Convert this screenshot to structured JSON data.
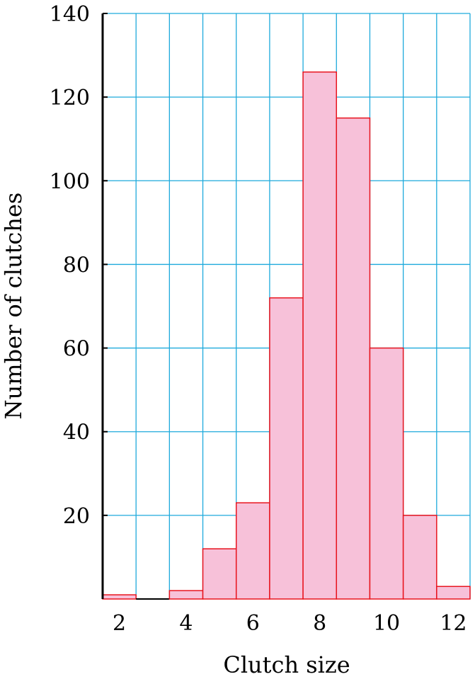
{
  "chart_data": {
    "type": "bar",
    "title": "",
    "xlabel": "Clutch size",
    "ylabel": "Number of clutches",
    "categories": [
      2,
      3,
      4,
      5,
      6,
      7,
      8,
      9,
      10,
      11,
      12
    ],
    "values": [
      1,
      0,
      2,
      12,
      23,
      72,
      126,
      115,
      60,
      20,
      3
    ],
    "xlim": [
      1.5,
      12.5
    ],
    "ylim": [
      0,
      140
    ],
    "x_ticks": [
      2,
      4,
      6,
      8,
      10,
      12
    ],
    "y_ticks": [
      20,
      40,
      60,
      80,
      100,
      120,
      140
    ],
    "grid": true,
    "colors": {
      "grid": "#1eaadc",
      "bar_fill": "#f7c1d9",
      "bar_stroke": "#e8141e",
      "axis": "#000000"
    }
  }
}
